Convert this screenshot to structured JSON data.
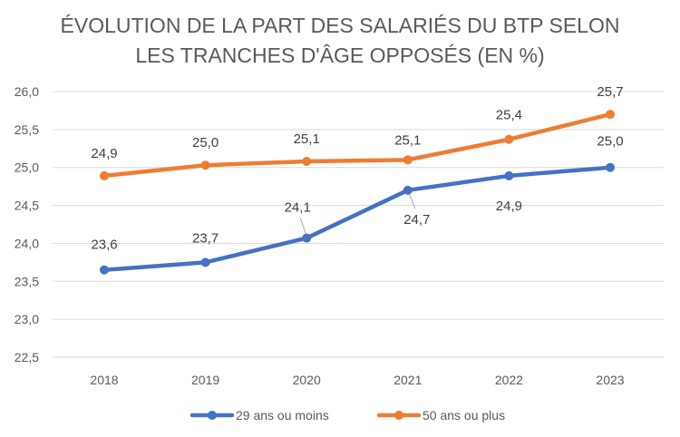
{
  "chart_data": {
    "type": "line",
    "title_lines": [
      "ÉVOLUTION DE LA PART DES SALARIÉS DU BTP SELON",
      "LES TRANCHES D'ÂGE OPPOSÉS (EN %)"
    ],
    "categories": [
      "2018",
      "2019",
      "2020",
      "2021",
      "2022",
      "2023"
    ],
    "y_ticks": [
      "26,0",
      "25,5",
      "25,0",
      "24,5",
      "24,0",
      "23,5",
      "23,0",
      "22,5"
    ],
    "ylim": [
      22.5,
      26.0
    ],
    "grid": true,
    "legend_position": "bottom",
    "series": [
      {
        "name": "29 ans ou moins",
        "color": "#4472c4",
        "values": [
          23.65,
          23.75,
          24.07,
          24.7,
          24.89,
          25.0
        ],
        "labels": [
          "23,6",
          "23,7",
          "24,1",
          "24,7",
          "24,9",
          "25,0"
        ]
      },
      {
        "name": "50 ans ou plus",
        "color": "#ed7d31",
        "values": [
          24.89,
          25.03,
          25.08,
          25.1,
          25.37,
          25.7
        ],
        "labels": [
          "24,9",
          "25,0",
          "25,1",
          "25,1",
          "25,4",
          "25,7"
        ]
      }
    ]
  }
}
